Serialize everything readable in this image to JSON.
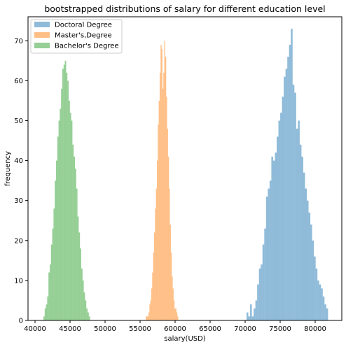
{
  "chart_data": {
    "type": "histogram",
    "title": "bootstrapped distributions of salary for different education level",
    "xlabel": "salary(USD)",
    "ylabel": "frequency",
    "xlim": [
      39000,
      83800
    ],
    "ylim": [
      0,
      76
    ],
    "xticks": [
      40000,
      45000,
      50000,
      55000,
      60000,
      65000,
      70000,
      75000,
      80000
    ],
    "yticks": [
      0,
      10,
      20,
      30,
      40,
      50,
      60,
      70
    ],
    "grid": false,
    "legend_position": "top-left",
    "series": [
      {
        "name": "Doctoral Degree",
        "color": "#1f77b4",
        "bin_start": 70200,
        "bin_width": 253,
        "counts": [
          2,
          1,
          4,
          1,
          3,
          5,
          9,
          13,
          14,
          19,
          23,
          31,
          33,
          35,
          41,
          40,
          42,
          46,
          50,
          52,
          56,
          61,
          63,
          66,
          69,
          73,
          59,
          57,
          48,
          50,
          44,
          41,
          37,
          33,
          30,
          27,
          24,
          20,
          16,
          13,
          10,
          9,
          8,
          6,
          4,
          3
        ]
      },
      {
        "name": "Master's,Degree",
        "color": "#ff7f0e",
        "bin_start": 55800,
        "bin_width": 133,
        "counts": [
          1,
          1,
          1,
          2,
          4,
          5,
          8,
          12,
          17,
          22,
          28,
          33,
          40,
          49,
          55,
          62,
          69,
          68,
          58,
          62,
          70,
          66,
          56,
          48,
          41,
          33,
          24,
          17,
          11,
          8,
          5,
          3,
          3,
          2,
          1
        ]
      },
      {
        "name": "Bachelor's Degree",
        "color": "#2ca02c",
        "bin_start": 41200,
        "bin_width": 180,
        "counts": [
          1,
          3,
          4,
          6,
          12,
          14,
          19,
          23,
          28,
          35,
          40,
          46,
          50,
          53,
          58,
          63,
          64,
          65,
          62,
          60,
          55,
          52,
          50,
          44,
          41,
          38,
          33,
          26,
          22,
          18,
          13,
          10,
          7,
          5,
          3,
          2,
          1
        ]
      }
    ]
  }
}
